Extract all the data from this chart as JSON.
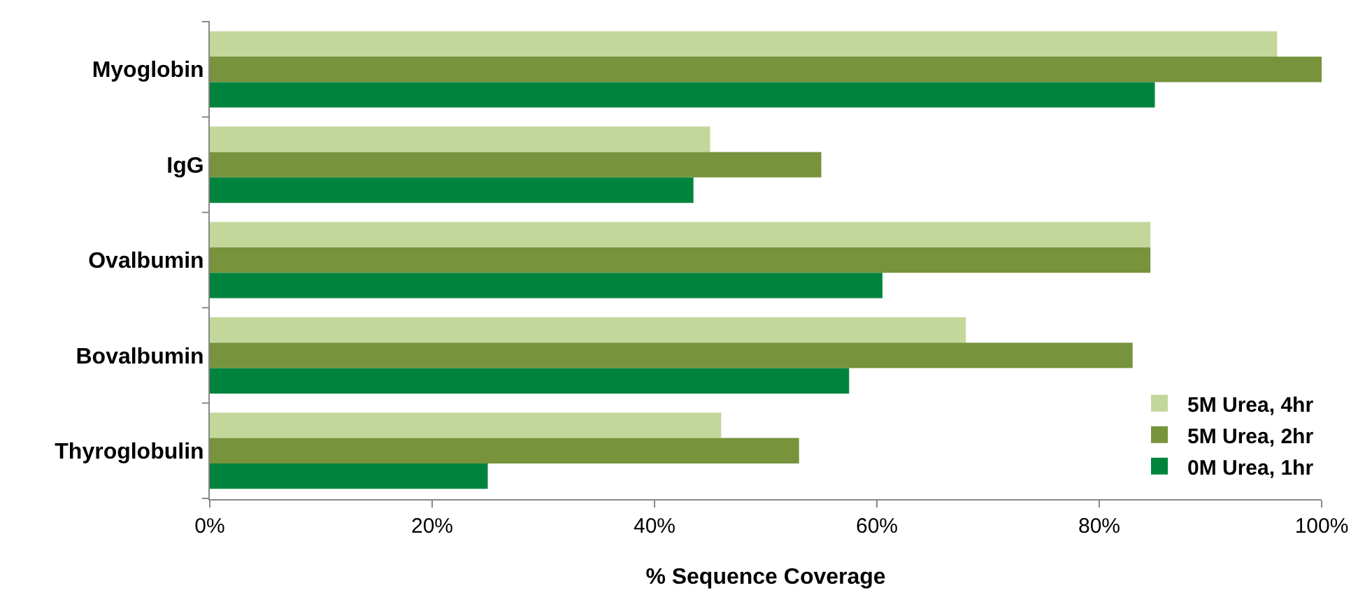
{
  "chart_data": {
    "type": "bar",
    "orientation": "horizontal",
    "xlabel": "% Sequence Coverage",
    "categories": [
      "Myoglobin",
      "IgG",
      "Ovalbumin",
      "Bovalbumin",
      "Thyroglobulin"
    ],
    "series": [
      {
        "name": "5M Urea, 4hr",
        "color": "#c4d79b",
        "values": [
          96,
          45,
          84.6,
          68,
          46
        ]
      },
      {
        "name": "5M Urea, 2hr",
        "color": "#77933c",
        "values": [
          100,
          55,
          84.6,
          83,
          53
        ]
      },
      {
        "name": "0M Urea, 1hr",
        "color": "#00843d",
        "values": [
          85,
          43.5,
          60.5,
          57.5,
          25
        ]
      }
    ],
    "xlim": [
      0,
      100
    ],
    "xticks": [
      {
        "value": 0,
        "label": "0%"
      },
      {
        "value": 20,
        "label": "20%"
      },
      {
        "value": 40,
        "label": "40%"
      },
      {
        "value": 60,
        "label": "60%"
      },
      {
        "value": 80,
        "label": "80%"
      },
      {
        "value": 100,
        "label": "100%"
      }
    ],
    "legend": "bottom right"
  }
}
